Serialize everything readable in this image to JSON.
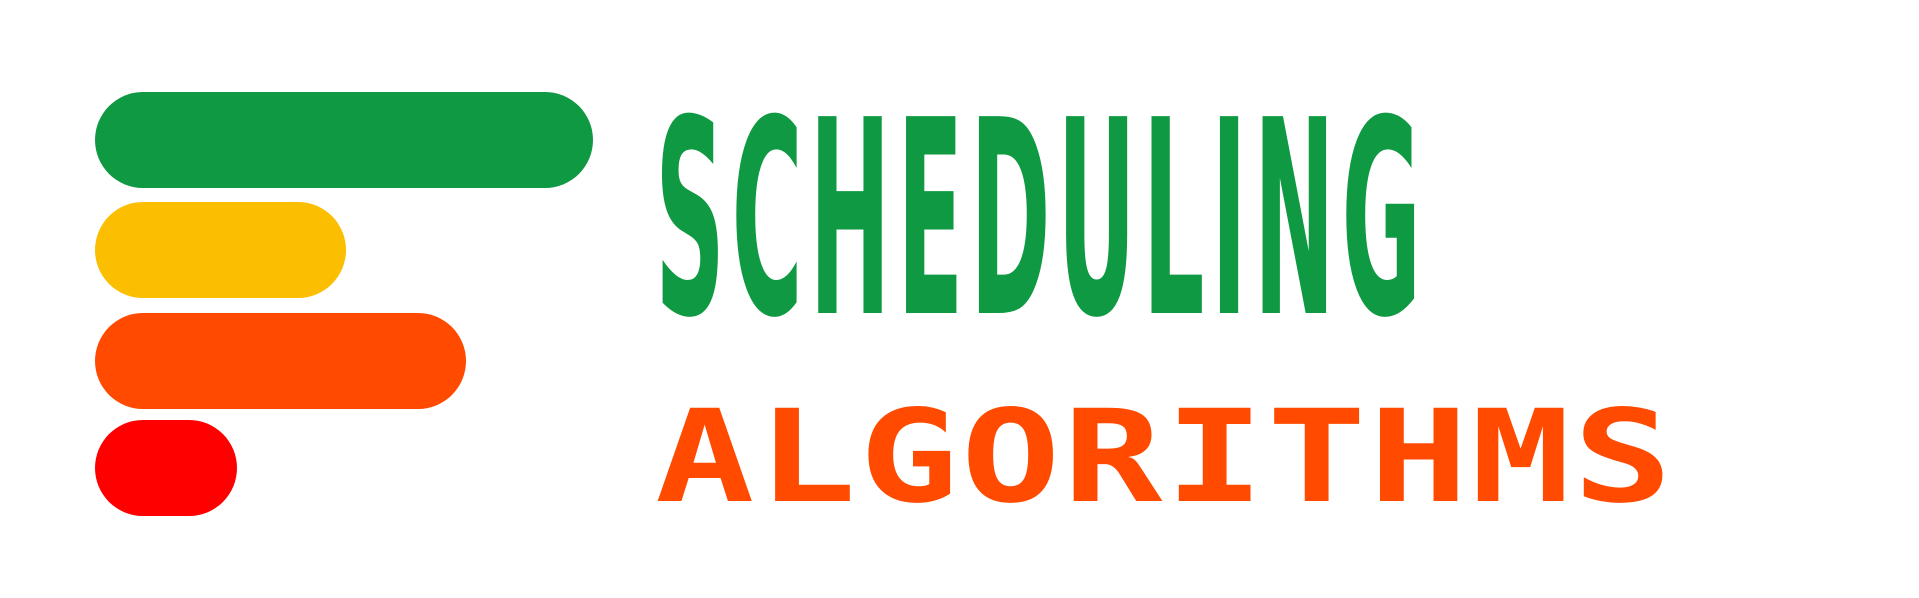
{
  "logo": {
    "bars": [
      {
        "name": "green-bar",
        "color": "#0f9942"
      },
      {
        "name": "yellow-bar",
        "color": "#fbbe00"
      },
      {
        "name": "orange-bar",
        "color": "#ff4a00"
      },
      {
        "name": "red-bar",
        "color": "#ff0000"
      }
    ]
  },
  "title": {
    "line1": "SCHEDULING",
    "line2": "ALGORITHMS",
    "line1_color": "#0f9942",
    "line2_color": "#ff4a00"
  }
}
